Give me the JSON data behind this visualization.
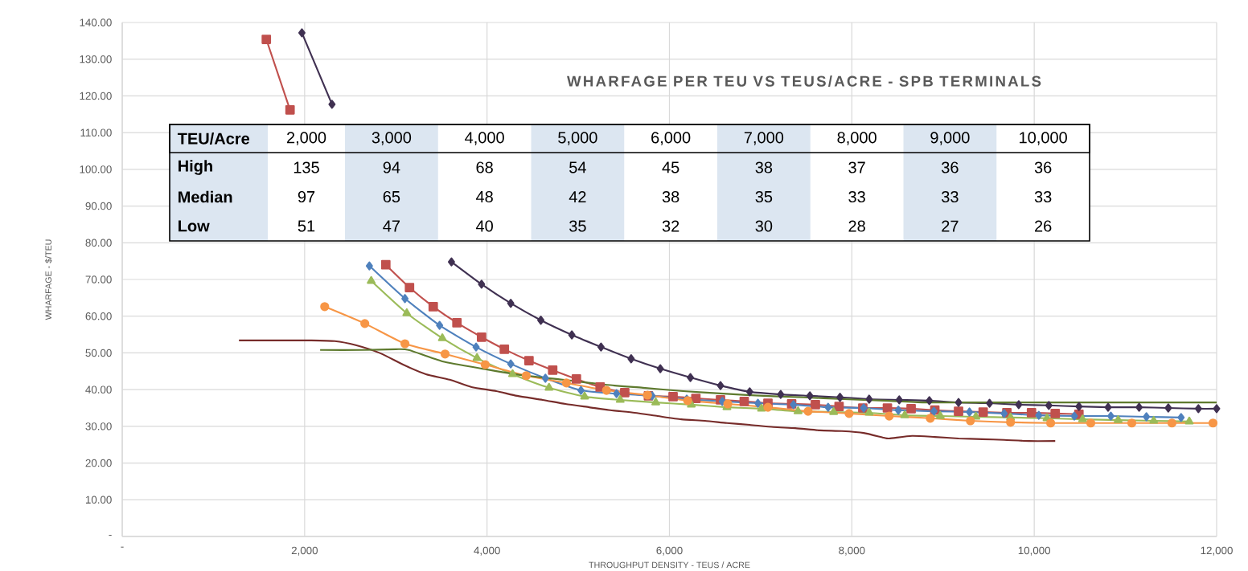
{
  "chart_data": {
    "type": "line",
    "title": "WHARFAGE  PER TEU VS TEUS/ACRE - SPB TERMINALS",
    "xlabel": "THROUGHPUT DENSITY - TEUS / ACRE",
    "ylabel": "WHARFAGE - $/TEU",
    "xlim": [
      0,
      12000
    ],
    "ylim": [
      0,
      140
    ],
    "xticks": [
      {
        "value": 0,
        "label": "-"
      },
      {
        "value": 2000,
        "label": "2,000"
      },
      {
        "value": 4000,
        "label": "4,000"
      },
      {
        "value": 6000,
        "label": "6,000"
      },
      {
        "value": 8000,
        "label": "8,000"
      },
      {
        "value": 10000,
        "label": "10,000"
      },
      {
        "value": 12000,
        "label": "12,000"
      }
    ],
    "yticks": [
      {
        "value": 0,
        "label": "-"
      },
      {
        "value": 10,
        "label": "10.00"
      },
      {
        "value": 20,
        "label": "20.00"
      },
      {
        "value": 30,
        "label": "30.00"
      },
      {
        "value": 40,
        "label": "40.00"
      },
      {
        "value": 50,
        "label": "50.00"
      },
      {
        "value": 60,
        "label": "60.00"
      },
      {
        "value": 70,
        "label": "70.00"
      },
      {
        "value": 80,
        "label": "80.00"
      },
      {
        "value": 90,
        "label": "90.00"
      },
      {
        "value": 100,
        "label": "100.00"
      },
      {
        "value": 110,
        "label": "110.00"
      },
      {
        "value": 120,
        "label": "120.00"
      },
      {
        "value": 130,
        "label": "130.00"
      },
      {
        "value": 140,
        "label": "140.00"
      }
    ],
    "grid": true,
    "annotations": [
      "TEU/Acre",
      "2,000",
      "3,000",
      "4,000",
      "5,000",
      "6,000",
      "7,000",
      "8,000",
      "9,000",
      "10,000",
      "High",
      "135",
      "94",
      "68",
      "54",
      "45",
      "38",
      "37",
      "36",
      "36",
      "Median",
      "97",
      "65",
      "48",
      "42",
      "38",
      "35",
      "33",
      "33",
      "33",
      "Low",
      "51",
      "47",
      "40",
      "35",
      "32",
      "30",
      "28",
      "27",
      "26"
    ],
    "series": [
      {
        "color": "#c0504d",
        "marker": "square",
        "x": [
          1580,
          1840,
          2400,
          2890,
          3150,
          3410,
          3670,
          3940,
          4190,
          4460,
          4720,
          4980,
          5240,
          5510,
          5770,
          6040,
          6290,
          6560,
          6820,
          7080,
          7340,
          7600,
          7860,
          8120,
          8390,
          8650,
          8910,
          9170,
          9440,
          9700,
          9970,
          10230,
          10490
        ],
        "values": [
          135.4,
          116.2,
          null,
          74.0,
          67.8,
          62.6,
          58.2,
          54.3,
          51.0,
          47.9,
          45.3,
          42.9,
          40.7,
          39.2,
          38.3,
          38.1,
          37.6,
          37.2,
          36.8,
          36.3,
          36.1,
          35.9,
          35.4,
          35.0,
          35.0,
          34.8,
          34.4,
          34.1,
          33.9,
          33.7,
          33.7,
          33.5,
          33.3
        ]
      },
      {
        "color": "#403152",
        "marker": "diamond",
        "x": [
          1970,
          2300,
          2900,
          3610,
          3940,
          4260,
          4590,
          4930,
          5250,
          5580,
          5900,
          6230,
          6560,
          6880,
          7220,
          7540,
          7870,
          8190,
          8520,
          8850,
          9170,
          9510,
          9830,
          10160,
          10490,
          10810,
          11150,
          11470,
          11800,
          12000
        ],
        "values": [
          137.2,
          117.7,
          null,
          74.8,
          68.7,
          63.5,
          58.9,
          54.9,
          51.6,
          48.4,
          45.7,
          43.3,
          41.1,
          39.4,
          38.7,
          38.3,
          37.9,
          37.4,
          37.2,
          37.0,
          36.5,
          36.3,
          35.9,
          35.7,
          35.4,
          35.2,
          35.2,
          35.0,
          34.8,
          34.8
        ]
      },
      {
        "color": "#4f81bd",
        "marker": "diamond",
        "x": [
          2710,
          3100,
          3480,
          3880,
          4260,
          4640,
          5030,
          5420,
          5810,
          6190,
          6580,
          6970,
          7360,
          7740,
          8130,
          8510,
          8900,
          9290,
          9670,
          10050,
          10440,
          10840,
          11230,
          11610
        ],
        "values": [
          73.7,
          64.8,
          57.5,
          51.6,
          47.0,
          43.1,
          39.8,
          38.9,
          38.3,
          37.4,
          36.8,
          36.3,
          35.9,
          35.2,
          35.0,
          34.4,
          34.1,
          33.9,
          33.5,
          33.0,
          32.8,
          32.8,
          32.6,
          32.4
        ]
      },
      {
        "color": "#9bbb59",
        "marker": "triangle",
        "x": [
          2730,
          3120,
          3510,
          3890,
          4280,
          4680,
          5070,
          5460,
          5850,
          6240,
          6630,
          7010,
          7410,
          7800,
          8190,
          8580,
          8970,
          9360,
          9740,
          10140,
          10530,
          10920,
          11310,
          11700
        ],
        "values": [
          69.6,
          60.8,
          54.0,
          48.6,
          44.2,
          40.5,
          38.1,
          37.2,
          36.5,
          35.9,
          35.2,
          34.8,
          34.1,
          33.9,
          33.7,
          33.0,
          32.8,
          32.6,
          32.4,
          32.2,
          31.9,
          31.7,
          31.5,
          31.3
        ]
      },
      {
        "color": "#f79646",
        "marker": "circle",
        "x": [
          2220,
          2660,
          3100,
          3540,
          3980,
          4430,
          4870,
          5310,
          5760,
          6200,
          6640,
          7080,
          7520,
          7970,
          8410,
          8860,
          9300,
          9740,
          10180,
          10620,
          11070,
          11510,
          11960
        ],
        "values": [
          62.6,
          58.0,
          52.5,
          49.7,
          46.8,
          43.8,
          41.8,
          39.8,
          38.5,
          37.0,
          36.1,
          35.2,
          34.1,
          33.5,
          32.8,
          32.2,
          31.5,
          31.1,
          30.9,
          30.9,
          30.9,
          30.9,
          30.9
        ]
      },
      {
        "color": "#772c2a",
        "marker": "none",
        "x": [
          1280,
          1560,
          1820,
          2060,
          2330,
          2560,
          2830,
          3080,
          3330,
          3590,
          3830,
          4100,
          4330,
          4610,
          4860,
          5120,
          5350,
          5620,
          5870,
          6130,
          6390,
          6630,
          6880,
          7140,
          7380,
          7650,
          7890,
          8130,
          8350,
          8410,
          8660,
          8910,
          9170,
          9430,
          9670,
          9940,
          10230
        ],
        "values": [
          53.4,
          53.4,
          53.4,
          53.4,
          53.2,
          52.1,
          49.9,
          46.8,
          44.2,
          42.7,
          40.7,
          39.6,
          38.3,
          37.2,
          36.1,
          35.2,
          34.4,
          33.7,
          32.8,
          31.9,
          31.5,
          30.9,
          30.4,
          29.8,
          29.5,
          28.9,
          28.7,
          28.2,
          26.9,
          26.7,
          27.4,
          27.1,
          26.7,
          26.5,
          26.3,
          26.0,
          26.0
        ]
      },
      {
        "color": "#5e7a2e",
        "marker": "none",
        "x": [
          2170,
          2650,
          3000,
          3140,
          3510,
          3950,
          4390,
          4830,
          5270,
          5710,
          6150,
          6590,
          7030,
          7470,
          7910,
          8350,
          8790,
          9230,
          9670,
          10560,
          12000
        ],
        "values": [
          50.8,
          50.8,
          51.0,
          50.8,
          47.7,
          45.7,
          43.9,
          42.7,
          41.4,
          40.5,
          39.6,
          38.9,
          38.3,
          37.9,
          37.4,
          37.0,
          36.5,
          36.5,
          36.5,
          36.5,
          36.5
        ]
      }
    ]
  }
}
